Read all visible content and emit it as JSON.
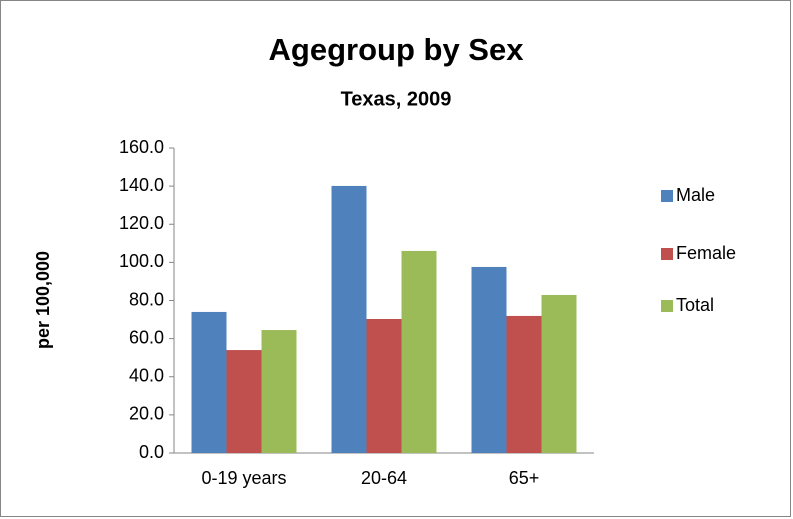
{
  "chart_data": {
    "type": "bar",
    "title": "Agegroup by Sex",
    "subtitle": "Texas, 2009",
    "y_label": "per 100,000",
    "categories": [
      "0-19 years",
      "20-64",
      "65+"
    ],
    "series": [
      {
        "name": "Male",
        "color": "#4f81bd",
        "values": [
          74.0,
          140.1,
          97.6
        ]
      },
      {
        "name": "Female",
        "color": "#c0504d",
        "values": [
          54.0,
          70.3,
          71.9
        ]
      },
      {
        "name": "Total",
        "color": "#9bbb59",
        "values": [
          64.5,
          106.0,
          82.9
        ]
      }
    ],
    "ylim": [
      0,
      160
    ],
    "yticks": [
      {
        "value": 0,
        "label": "0.0"
      },
      {
        "value": 20,
        "label": "20.0"
      },
      {
        "value": 40,
        "label": "40.0"
      },
      {
        "value": 60,
        "label": "60.0"
      },
      {
        "value": 80,
        "label": "80.0"
      },
      {
        "value": 100,
        "label": "100.0"
      },
      {
        "value": 120,
        "label": "120.0"
      },
      {
        "value": 140,
        "label": "140.0"
      },
      {
        "value": 160,
        "label": "160.0"
      }
    ],
    "grid": false,
    "legend": "right"
  }
}
